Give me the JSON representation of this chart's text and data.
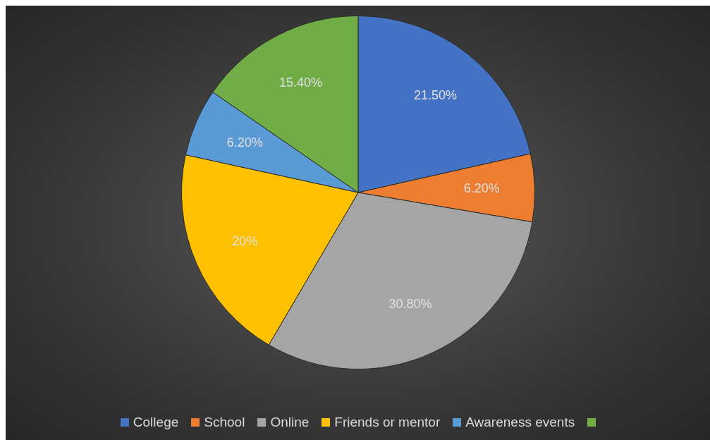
{
  "chart_data": {
    "type": "pie",
    "categories": [
      "College",
      "School",
      "Online",
      "Friends or mentor",
      "Awareness events",
      null
    ],
    "values": [
      21.5,
      6.2,
      30.8,
      20,
      6.2,
      15.4
    ],
    "colors": [
      "#4472c4",
      "#ed7d31",
      "#a5a5a5",
      "#ffc000",
      "#5b9bd5",
      "#70ad47"
    ],
    "value_labels": [
      "21.50%",
      "6.20%",
      "30.80%",
      "20%",
      "6.20%",
      "15.40%"
    ],
    "legend": "bottom"
  }
}
